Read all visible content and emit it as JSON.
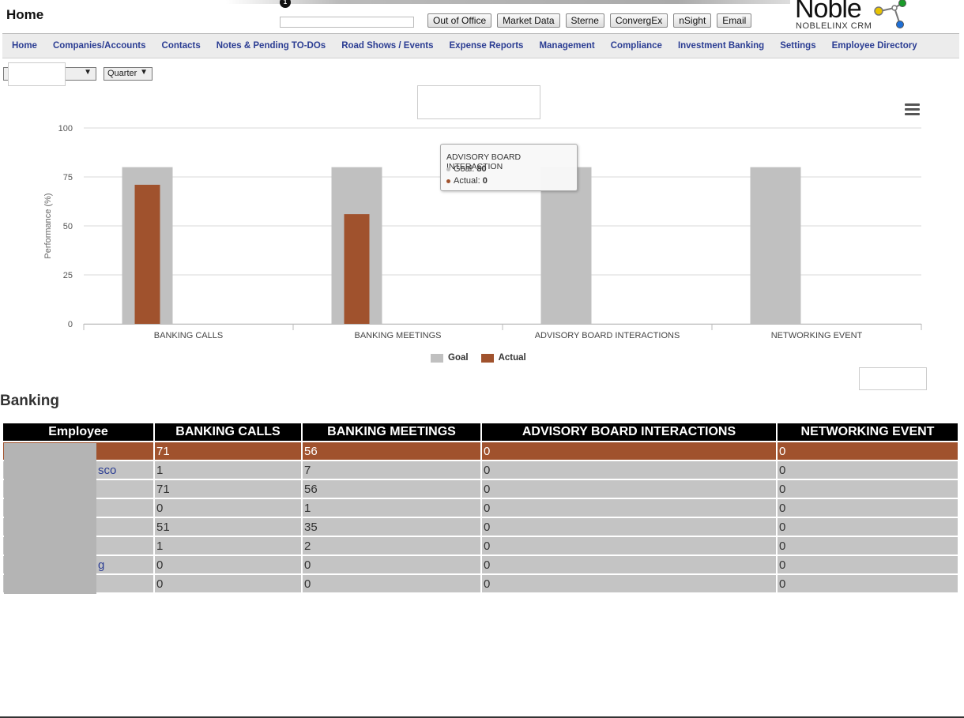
{
  "header": {
    "title": "Home",
    "marker": "1",
    "search_value": "",
    "quick_buttons": [
      "Out of Office",
      "Market Data",
      "Sterne",
      "ConvergEx",
      "nSight",
      "Email"
    ]
  },
  "logo": {
    "word": "Noble",
    "subtitle": "NOBLELINX CRM"
  },
  "nav": {
    "items": [
      "Home",
      "Companies/Accounts",
      "Contacts",
      "Notes & Pending TO-DOs",
      "Road Shows / Events",
      "Expense Reports",
      "Management",
      "Compliance",
      "Investment Banking",
      "Settings",
      "Employee Directory"
    ]
  },
  "filters": {
    "period_selected": "",
    "interval_selected": "Quarter"
  },
  "chart_data": {
    "type": "bar",
    "title": "",
    "ylabel": "Performance (%)",
    "xlabel": "",
    "ylim": [
      0,
      100
    ],
    "yticks": [
      0,
      25,
      50,
      75,
      100
    ],
    "grid": true,
    "legend_position": "bottom",
    "categories": [
      "BANKING CALLS",
      "BANKING MEETINGS",
      "ADVISORY BOARD INTERACTIONS",
      "NETWORKING EVENT"
    ],
    "series": [
      {
        "name": "Goal",
        "color": "#c0c0c0",
        "values": [
          80,
          80,
          80,
          80
        ]
      },
      {
        "name": "Actual",
        "color": "#a0522d",
        "values": [
          71,
          56,
          0,
          0
        ]
      }
    ]
  },
  "tooltip": {
    "title": "ADVISORY BOARD INTERACTION",
    "goal_label": "Goal: ",
    "goal_value": "80",
    "actual_label": "Actual: ",
    "actual_value": "0"
  },
  "section": {
    "title": "Banking"
  },
  "table": {
    "columns": [
      "Employee",
      "BANKING CALLS",
      "BANKING MEETINGS",
      "ADVISORY BOARD INTERACTIONS",
      "NETWORKING EVENT"
    ],
    "rows": [
      {
        "employee": "",
        "calls": "71",
        "meetings": "56",
        "advisory": "0",
        "networking": "0"
      },
      {
        "employee": "sco",
        "calls": "1",
        "meetings": "7",
        "advisory": "0",
        "networking": "0"
      },
      {
        "employee": "",
        "calls": "71",
        "meetings": "56",
        "advisory": "0",
        "networking": "0"
      },
      {
        "employee": "",
        "calls": "0",
        "meetings": "1",
        "advisory": "0",
        "networking": "0"
      },
      {
        "employee": "",
        "calls": "51",
        "meetings": "35",
        "advisory": "0",
        "networking": "0"
      },
      {
        "employee": "",
        "calls": "1",
        "meetings": "2",
        "advisory": "0",
        "networking": "0"
      },
      {
        "employee": "g",
        "calls": "0",
        "meetings": "0",
        "advisory": "0",
        "networking": "0"
      },
      {
        "employee": "",
        "calls": "0",
        "meetings": "0",
        "advisory": "0",
        "networking": "0"
      }
    ]
  }
}
